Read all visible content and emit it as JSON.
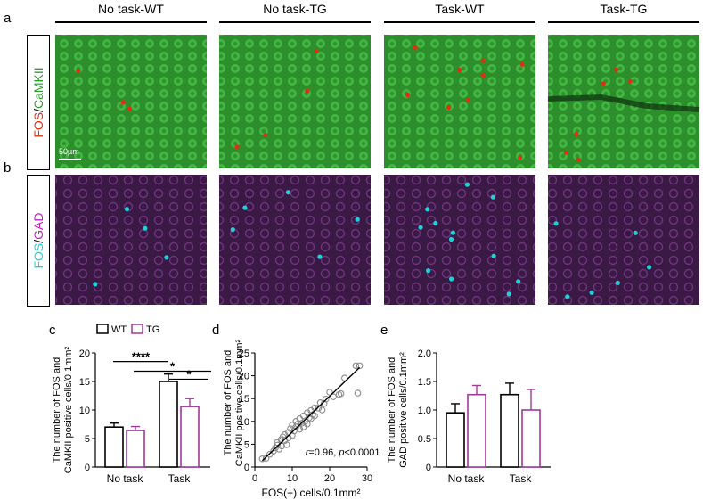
{
  "panel_letters": {
    "a": "a",
    "b": "b",
    "c": "c",
    "d": "d",
    "e": "e"
  },
  "columns": [
    "No task-WT",
    "No task-TG",
    "Task-WT",
    "Task-TG"
  ],
  "row_a_label": {
    "part1": "FOS",
    "sep": "/",
    "part2": "CaMKII"
  },
  "row_b_label": {
    "part1": "FOS",
    "sep": "/",
    "part2": "GAD"
  },
  "scale_bar": "50µm",
  "colors": {
    "wt": "#000000",
    "tg": "#a03a9a",
    "green": "#2a9a2a",
    "magenta": "#c020c0",
    "cyan": "#20d0d8",
    "red": "#e03010",
    "scatter": "#8a8a8a"
  },
  "legend": {
    "wt": "WT",
    "tg": "TG"
  },
  "chart_data": [
    {
      "id": "c",
      "type": "bar",
      "categories": [
        "No task",
        "Task"
      ],
      "series": [
        {
          "name": "WT",
          "values": [
            7.0,
            15.0
          ],
          "errors": [
            0.7,
            1.3
          ]
        },
        {
          "name": "TG",
          "values": [
            6.4,
            10.6
          ],
          "errors": [
            0.7,
            1.4
          ]
        }
      ],
      "ylabel_line1": "The number of FOS and",
      "ylabel_line2": "CaMKII positive cells/0.1mm²",
      "ylim": [
        0,
        20
      ],
      "yticks": [
        0,
        5,
        10,
        15,
        20
      ],
      "significance": [
        "****",
        "*",
        "*"
      ]
    },
    {
      "id": "d",
      "type": "scatter",
      "xlabel": "FOS(+) cells/0.1mm²",
      "ylabel_line1": "The number of FOS and",
      "ylabel_line2": "CaMKII positive cells/0.1mm²",
      "xlim": [
        0,
        30
      ],
      "ylim": [
        0,
        25
      ],
      "xticks": [
        0,
        10,
        20,
        30
      ],
      "yticks": [
        0,
        5,
        10,
        15,
        20,
        25
      ],
      "annotation": {
        "r": "r",
        "r_val": "=0.96, ",
        "p": "p",
        "p_val": "<0.0001"
      },
      "points": [
        [
          2,
          1.8
        ],
        [
          3,
          1.9
        ],
        [
          4,
          2.8
        ],
        [
          5,
          3.5
        ],
        [
          5.5,
          4.2
        ],
        [
          6,
          4.8
        ],
        [
          6,
          5.4
        ],
        [
          6.5,
          3.9
        ],
        [
          7,
          6
        ],
        [
          7.2,
          4.6
        ],
        [
          7.5,
          6.6
        ],
        [
          8,
          5.8
        ],
        [
          8,
          7.1
        ],
        [
          8.5,
          4.9
        ],
        [
          9,
          6.4
        ],
        [
          9,
          7.6
        ],
        [
          9.5,
          8.4
        ],
        [
          10,
          6.9
        ],
        [
          10,
          9.2
        ],
        [
          10.5,
          7.9
        ],
        [
          11,
          8.8
        ],
        [
          11,
          10
        ],
        [
          11.5,
          9.4
        ],
        [
          12,
          8.3
        ],
        [
          12,
          10.6
        ],
        [
          12.5,
          9.6
        ],
        [
          13,
          11.2
        ],
        [
          13,
          8.8
        ],
        [
          13.5,
          10.1
        ],
        [
          14,
          11.9
        ],
        [
          14,
          9.4
        ],
        [
          14.5,
          10.8
        ],
        [
          15,
          12.4
        ],
        [
          15,
          10.6
        ],
        [
          15.5,
          11.5
        ],
        [
          16,
          13
        ],
        [
          16,
          11.2
        ],
        [
          17,
          12.9
        ],
        [
          17.5,
          14.1
        ],
        [
          18,
          12.5
        ],
        [
          18.5,
          13.9
        ],
        [
          19,
          14.9
        ],
        [
          20,
          16.4
        ],
        [
          21,
          15.4
        ],
        [
          22.5,
          15.9
        ],
        [
          23,
          16.1
        ],
        [
          24,
          19.5
        ],
        [
          27,
          22.2
        ],
        [
          28,
          22.2
        ],
        [
          27.5,
          16.2
        ]
      ],
      "fit": [
        [
          2,
          1.4
        ],
        [
          28,
          21.8
        ]
      ]
    },
    {
      "id": "e",
      "type": "bar",
      "categories": [
        "No task",
        "Task"
      ],
      "series": [
        {
          "name": "WT",
          "values": [
            0.95,
            1.27
          ],
          "errors": [
            0.16,
            0.2
          ]
        },
        {
          "name": "TG",
          "values": [
            1.27,
            1.0
          ],
          "errors": [
            0.16,
            0.36
          ]
        }
      ],
      "ylabel_line1": "The number of FOS and",
      "ylabel_line2": "GAD positive cells/0.1mm²",
      "ylim": [
        0,
        2.0
      ],
      "yticks": [
        "0",
        "0.5",
        "1.0",
        "1.5",
        "2.0"
      ]
    }
  ]
}
